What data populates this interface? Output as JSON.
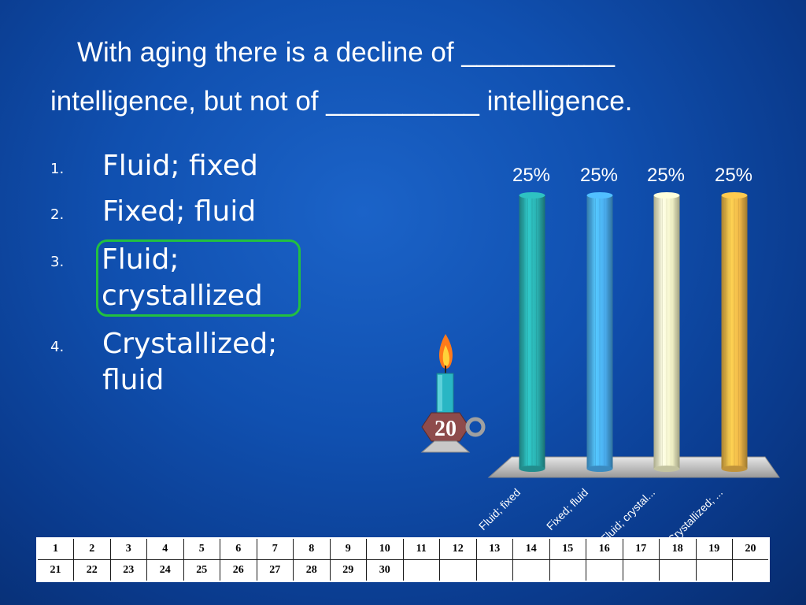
{
  "question": {
    "line1": "With aging there is a decline of __________",
    "line2": "intelligence, but not of __________ intelligence."
  },
  "answers": [
    {
      "num": "1.",
      "text": "Fluid; fixed"
    },
    {
      "num": "2.",
      "text": "Fixed; fluid"
    },
    {
      "num": "3.",
      "text": "Fluid; crystallized",
      "correct": true
    },
    {
      "num": "4.",
      "text": "Crystallized; fluid"
    }
  ],
  "countdown": {
    "value": "20",
    "icon": "candle-timer-icon"
  },
  "chart_data": {
    "type": "bar",
    "categories": [
      "Fluid; fixed",
      "Fixed; fluid",
      "Fluid; crystal...",
      "Crystallized; ..."
    ],
    "values": [
      25,
      25,
      25,
      25
    ],
    "value_labels": [
      "25%",
      "25%",
      "25%",
      "25%"
    ],
    "colors": [
      "#2ab0b0",
      "#4aaef0",
      "#f4f4c8",
      "#f0b848"
    ],
    "ylim": [
      0,
      25
    ],
    "grid": false
  },
  "participants": {
    "row1": [
      "1",
      "2",
      "3",
      "4",
      "5",
      "6",
      "7",
      "8",
      "9",
      "10",
      "11",
      "12",
      "13",
      "14",
      "15",
      "16",
      "17",
      "18",
      "19",
      "20"
    ],
    "row2": [
      "21",
      "22",
      "23",
      "24",
      "25",
      "26",
      "27",
      "28",
      "29",
      "30",
      "",
      "",
      "",
      "",
      "",
      "",
      "",
      "",
      "",
      ""
    ]
  }
}
